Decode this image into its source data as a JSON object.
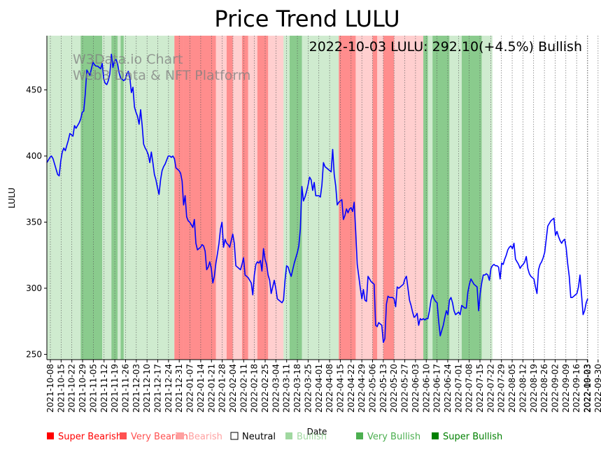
{
  "chart_data": {
    "type": "line",
    "title": "Price Trend LULU",
    "xlabel": "Date",
    "ylabel": "LULU",
    "ylim": [
      246,
      491
    ],
    "yticks": [
      250,
      300,
      350,
      400,
      450
    ],
    "headline": "2022-10-03 LULU: 292.10(+4.5%) Bullish",
    "watermark": [
      "W3Data.io Chart",
      "Web3 Data & NFT Platform"
    ],
    "x_ticks": [
      "2021-10-08",
      "2021-10-15",
      "2021-10-22",
      "2021-10-29",
      "2021-11-05",
      "2021-11-12",
      "2021-11-19",
      "2021-11-26",
      "2021-12-03",
      "2021-12-10",
      "2021-12-17",
      "2021-12-24",
      "2021-12-31",
      "2022-01-07",
      "2022-01-14",
      "2022-01-21",
      "2022-01-28",
      "2022-02-04",
      "2022-02-11",
      "2022-02-18",
      "2022-02-25",
      "2022-03-04",
      "2022-03-11",
      "2022-03-18",
      "2022-03-25",
      "2022-04-01",
      "2022-04-08",
      "2022-04-15",
      "2022-04-22",
      "2022-04-29",
      "2022-05-06",
      "2022-05-13",
      "2022-05-20",
      "2022-05-27",
      "2022-06-03",
      "2022-06-10",
      "2022-06-17",
      "2022-06-24",
      "2022-07-01",
      "2022-07-08",
      "2022-07-15",
      "2022-07-22",
      "2022-07-29",
      "2022-08-05",
      "2022-08-12",
      "2022-08-19",
      "2022-08-26",
      "2022-09-02",
      "2022-09-09",
      "2022-09-16",
      "2022-09-23",
      "2022-09-30",
      "2022-10-03"
    ],
    "legend": [
      {
        "label": "Super Bearish",
        "color": "#ff0000"
      },
      {
        "label": "Very Bearish",
        "color": "#ff5050"
      },
      {
        "label": "Bearish",
        "color": "#ffa0a0"
      },
      {
        "label": "Neutral",
        "color": "#000000"
      },
      {
        "label": "Bullish",
        "color": "#a0d8a0"
      },
      {
        "label": "Very Bullish",
        "color": "#4caf50"
      },
      {
        "label": "Super Bullish",
        "color": "#008000"
      }
    ],
    "bands": [
      {
        "from": 0,
        "to": 22,
        "sentiment": "Bullish"
      },
      {
        "from": 22,
        "to": 36,
        "sentiment": "Very Bullish"
      },
      {
        "from": 36,
        "to": 42,
        "sentiment": "Bullish"
      },
      {
        "from": 42,
        "to": 46,
        "sentiment": "Very Bullish"
      },
      {
        "from": 46,
        "to": 48,
        "sentiment": "Bullish"
      },
      {
        "from": 48,
        "to": 50,
        "sentiment": "Very Bullish"
      },
      {
        "from": 50,
        "to": 83,
        "sentiment": "Bullish"
      },
      {
        "from": 83,
        "to": 89,
        "sentiment": "Very Bearish"
      },
      {
        "from": 89,
        "to": 110,
        "sentiment": "Very Bearish"
      },
      {
        "from": 110,
        "to": 117,
        "sentiment": "Bearish"
      },
      {
        "from": 117,
        "to": 121,
        "sentiment": "Very Bearish"
      },
      {
        "from": 121,
        "to": 127,
        "sentiment": "Bearish"
      },
      {
        "from": 127,
        "to": 131,
        "sentiment": "Very Bearish"
      },
      {
        "from": 131,
        "to": 137,
        "sentiment": "Bearish"
      },
      {
        "from": 137,
        "to": 144,
        "sentiment": "Very Bearish"
      },
      {
        "from": 144,
        "to": 154,
        "sentiment": "Bearish"
      },
      {
        "from": 154,
        "to": 158,
        "sentiment": "Bullish"
      },
      {
        "from": 158,
        "to": 166,
        "sentiment": "Very Bullish"
      },
      {
        "from": 166,
        "to": 190,
        "sentiment": "Bullish"
      },
      {
        "from": 190,
        "to": 201,
        "sentiment": "Very Bearish"
      },
      {
        "from": 201,
        "to": 212,
        "sentiment": "Bearish"
      },
      {
        "from": 212,
        "to": 215,
        "sentiment": "Very Bearish"
      },
      {
        "from": 215,
        "to": 219,
        "sentiment": "Bearish"
      },
      {
        "from": 219,
        "to": 226,
        "sentiment": "Very Bearish"
      },
      {
        "from": 226,
        "to": 245,
        "sentiment": "Bearish"
      },
      {
        "from": 245,
        "to": 248,
        "sentiment": "Very Bullish"
      },
      {
        "from": 248,
        "to": 251,
        "sentiment": "Bullish"
      },
      {
        "from": 251,
        "to": 262,
        "sentiment": "Very Bullish"
      },
      {
        "from": 262,
        "to": 270,
        "sentiment": "Bullish"
      },
      {
        "from": 270,
        "to": 283,
        "sentiment": "Very Bullish"
      },
      {
        "from": 283,
        "to": 290,
        "sentiment": "Bullish"
      }
    ],
    "series": [
      {
        "name": "LULU",
        "color": "#0000ff",
        "values": [
          395,
          397,
          399,
          400,
          398,
          394,
          390,
          386,
          385,
          396,
          403,
          406,
          404,
          408,
          412,
          417,
          416,
          415,
          423,
          421,
          423,
          425,
          428,
          433,
          434,
          447,
          465,
          463,
          461,
          466,
          471,
          469,
          468,
          468,
          467,
          466,
          470,
          458,
          455,
          454,
          457,
          462,
          477,
          467,
          472,
          473,
          470,
          463,
          459,
          458,
          457,
          458,
          462,
          464,
          459,
          448,
          452,
          437,
          433,
          430,
          424,
          435,
          423,
          409,
          406,
          404,
          401,
          395,
          403,
          395,
          386,
          382,
          376,
          371,
          382,
          389,
          392,
          394,
          397,
          400,
          400,
          399,
          400,
          398,
          391,
          390,
          389,
          387,
          381,
          363,
          370,
          354,
          351,
          350,
          348,
          346,
          352,
          334,
          329,
          330,
          331,
          333,
          332,
          328,
          314,
          316,
          320,
          315,
          304,
          309,
          319,
          326,
          334,
          345,
          350,
          331,
          337,
          334,
          333,
          331,
          336,
          341,
          334,
          317,
          316,
          315,
          314,
          318,
          323,
          310,
          309,
          308,
          306,
          304,
          295,
          310,
          318,
          320,
          319,
          321,
          313,
          330,
          322,
          318,
          310,
          306,
          296,
          301,
          306,
          300,
          292,
          291,
          290,
          289,
          291,
          306,
          317,
          316,
          312,
          309,
          314,
          319,
          323,
          327,
          332,
          345,
          377,
          366,
          369,
          373,
          378,
          384,
          382,
          374,
          380,
          370,
          370,
          370,
          369,
          378,
          395,
          392,
          391,
          390,
          389,
          388,
          405,
          386,
          377,
          363,
          365,
          366,
          367,
          352,
          355,
          360,
          357,
          360,
          361,
          358,
          365,
          343,
          318,
          309,
          300,
          292,
          299,
          291,
          290,
          309,
          307,
          305,
          304,
          303,
          272,
          271,
          274,
          273,
          272,
          259,
          262,
          288,
          294,
          293,
          293,
          293,
          292,
          286,
          301,
          300,
          301,
          302,
          303,
          307,
          309,
          300,
          291,
          287,
          282,
          278,
          279,
          281,
          272,
          277,
          276,
          277,
          276,
          277,
          277,
          283,
          291,
          295,
          292,
          290,
          289,
          275,
          264,
          268,
          272,
          278,
          283,
          280,
          291,
          293,
          289,
          283,
          280,
          281,
          282,
          280,
          287,
          286,
          285,
          285,
          297,
          303,
          307,
          305,
          303,
          302,
          301,
          283,
          296,
          304,
          310,
          310,
          311,
          310,
          306,
          315,
          317,
          318,
          317,
          317,
          316,
          307,
          319,
          318,
          322,
          325,
          329,
          331,
          332,
          330,
          334,
          322,
          320,
          318,
          315,
          317,
          318,
          320,
          324,
          315,
          311,
          309,
          308,
          307,
          301,
          296,
          314,
          318,
          320,
          323,
          327,
          337,
          347,
          349,
          351,
          352,
          353,
          340,
          343,
          339,
          336,
          334,
          336,
          337,
          330,
          318,
          309,
          293,
          293,
          294,
          295,
          296,
          301,
          310,
          295,
          280,
          283,
          289,
          292
        ]
      }
    ]
  }
}
